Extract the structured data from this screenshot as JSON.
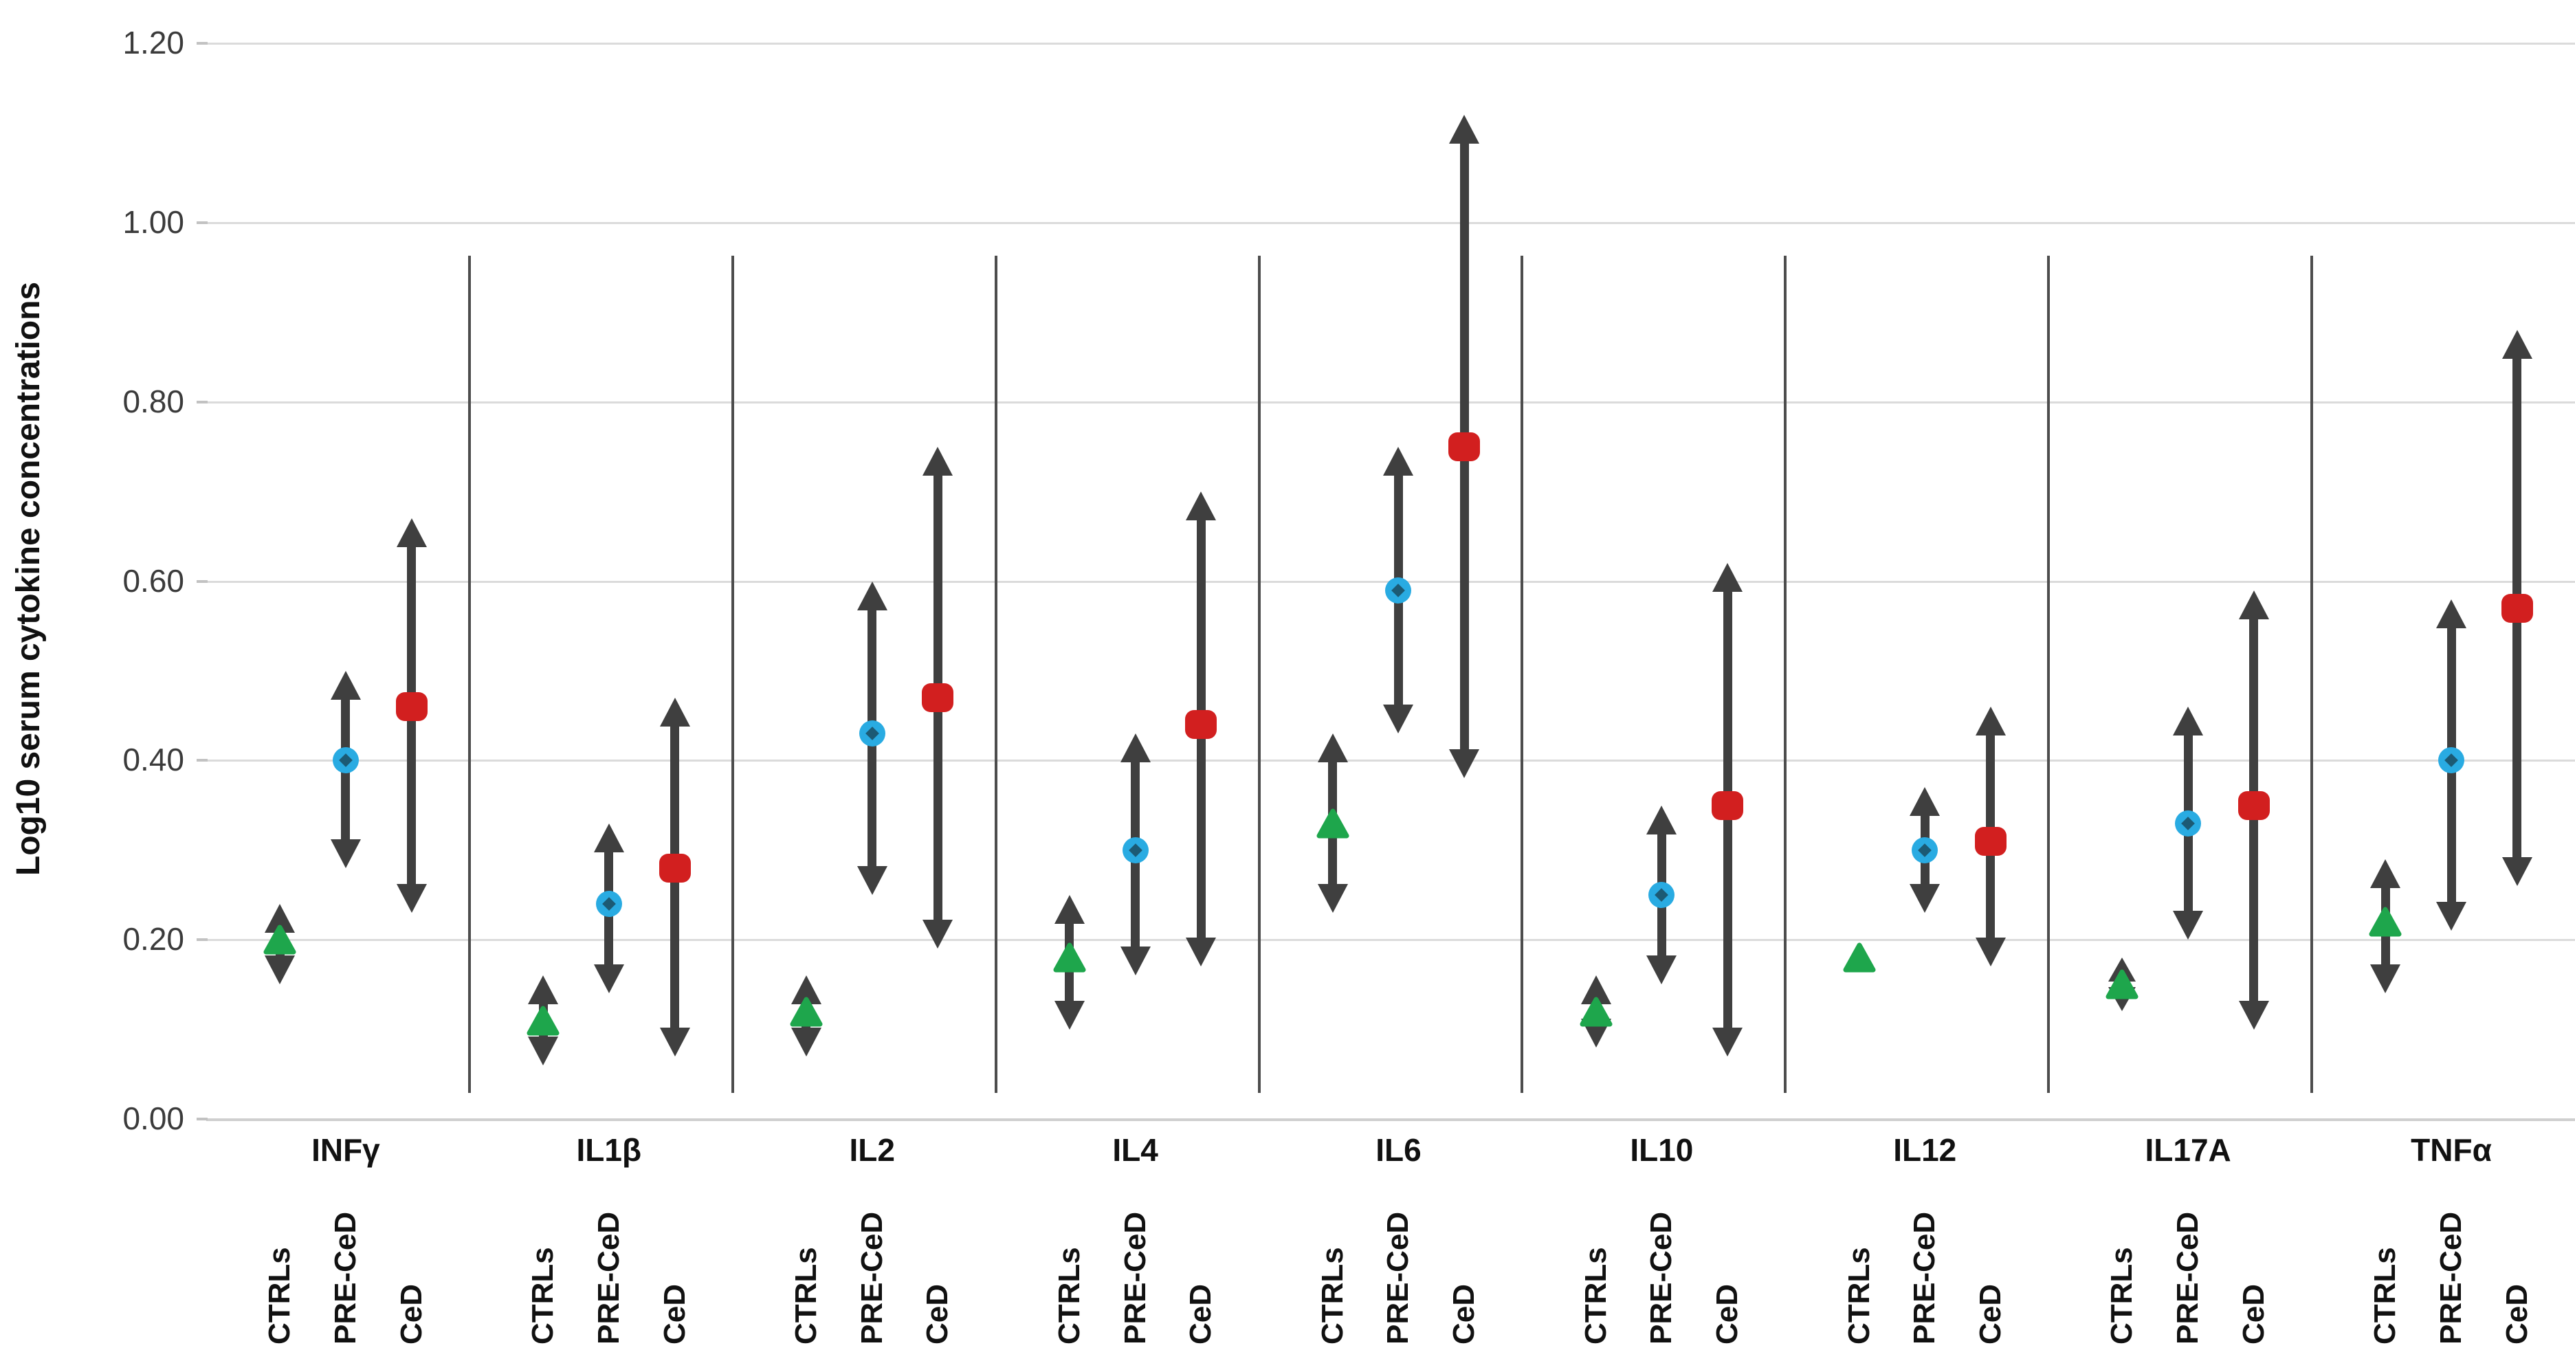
{
  "page": {
    "background": "#ffffff"
  },
  "chart_data": {
    "type": "scatter",
    "title": "",
    "ylabel": "Log10 serum cytokine concentrations",
    "xlabel": "",
    "ylim": [
      0,
      1.2
    ],
    "ytick_labels": [
      "0.00",
      "0.20",
      "0.40",
      "0.60",
      "0.80",
      "1.00",
      "1.20"
    ],
    "ytick_values": [
      0,
      0.2,
      0.4,
      0.6,
      0.8,
      1.0,
      1.2
    ],
    "grid": true,
    "legend_position": "none",
    "series": [
      {
        "name": "CTRLs",
        "marker": "triangle",
        "color": "#1ea64c"
      },
      {
        "name": "PRE-CeD",
        "marker": "circle",
        "color": "#29abe2"
      },
      {
        "name": "CeD",
        "marker": "square",
        "color": "#d21f1f"
      }
    ],
    "range_arrow_color": "#3f3f3f",
    "gridline_color": "#dbdbdb",
    "divider_color": "#4d4d4d",
    "groups": [
      {
        "label": "INFγ",
        "values": [
          {
            "series": "CTRLs",
            "low": 0.15,
            "mid": 0.2,
            "high": 0.24
          },
          {
            "series": "PRE-CeD",
            "low": 0.28,
            "mid": 0.4,
            "high": 0.5
          },
          {
            "series": "CeD",
            "low": 0.23,
            "mid": 0.46,
            "high": 0.67
          }
        ]
      },
      {
        "label": "IL1β",
        "values": [
          {
            "series": "CTRLs",
            "low": 0.06,
            "mid": 0.11,
            "high": 0.16
          },
          {
            "series": "PRE-CeD",
            "low": 0.14,
            "mid": 0.24,
            "high": 0.33
          },
          {
            "series": "CeD",
            "low": 0.07,
            "mid": 0.28,
            "high": 0.47
          }
        ]
      },
      {
        "label": "IL2",
        "values": [
          {
            "series": "CTRLs",
            "low": 0.07,
            "mid": 0.12,
            "high": 0.16
          },
          {
            "series": "PRE-CeD",
            "low": 0.25,
            "mid": 0.43,
            "high": 0.6
          },
          {
            "series": "CeD",
            "low": 0.19,
            "mid": 0.47,
            "high": 0.75
          }
        ]
      },
      {
        "label": "IL4",
        "values": [
          {
            "series": "CTRLs",
            "low": 0.1,
            "mid": 0.18,
            "high": 0.25
          },
          {
            "series": "PRE-CeD",
            "low": 0.16,
            "mid": 0.3,
            "high": 0.43
          },
          {
            "series": "CeD",
            "low": 0.17,
            "mid": 0.44,
            "high": 0.7
          }
        ]
      },
      {
        "label": "IL6",
        "values": [
          {
            "series": "CTRLs",
            "low": 0.23,
            "mid": 0.33,
            "high": 0.43
          },
          {
            "series": "PRE-CeD",
            "low": 0.43,
            "mid": 0.59,
            "high": 0.75
          },
          {
            "series": "CeD",
            "low": 0.38,
            "mid": 0.75,
            "high": 1.12
          }
        ]
      },
      {
        "label": "IL10",
        "values": [
          {
            "series": "CTRLs",
            "low": 0.08,
            "mid": 0.12,
            "high": 0.16
          },
          {
            "series": "PRE-CeD",
            "low": 0.15,
            "mid": 0.25,
            "high": 0.35
          },
          {
            "series": "CeD",
            "low": 0.07,
            "mid": 0.35,
            "high": 0.62
          }
        ]
      },
      {
        "label": "IL12",
        "values": [
          {
            "series": "CTRLs",
            "low": 0.17,
            "mid": 0.18,
            "high": 0.19
          },
          {
            "series": "PRE-CeD",
            "low": 0.23,
            "mid": 0.3,
            "high": 0.37
          },
          {
            "series": "CeD",
            "low": 0.17,
            "mid": 0.31,
            "high": 0.46
          }
        ]
      },
      {
        "label": "IL17A",
        "values": [
          {
            "series": "CTRLs",
            "low": 0.12,
            "mid": 0.15,
            "high": 0.18
          },
          {
            "series": "PRE-CeD",
            "low": 0.2,
            "mid": 0.33,
            "high": 0.46
          },
          {
            "series": "CeD",
            "low": 0.1,
            "mid": 0.35,
            "high": 0.59
          }
        ]
      },
      {
        "label": "TNFα",
        "values": [
          {
            "series": "CTRLs",
            "low": 0.14,
            "mid": 0.22,
            "high": 0.29
          },
          {
            "series": "PRE-CeD",
            "low": 0.21,
            "mid": 0.4,
            "high": 0.58
          },
          {
            "series": "CeD",
            "low": 0.26,
            "mid": 0.57,
            "high": 0.88
          }
        ]
      }
    ]
  }
}
